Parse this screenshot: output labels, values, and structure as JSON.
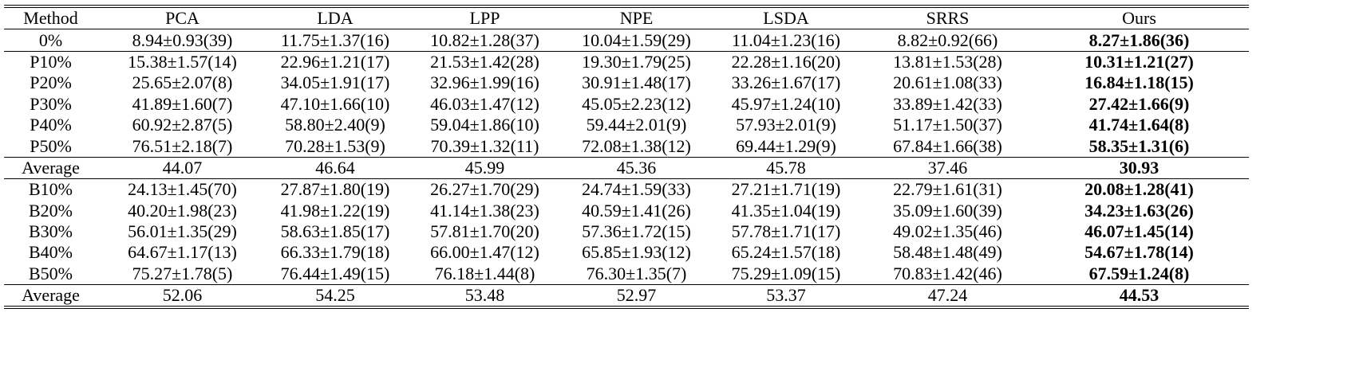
{
  "table": {
    "header": [
      "Method",
      "PCA",
      "LDA",
      "LPP",
      "NPE",
      "LSDA",
      "SRRS",
      "Ours"
    ],
    "rows": [
      [
        "0%",
        "8.94±0.93(39)",
        "11.75±1.37(16)",
        "10.82±1.28(37)",
        "10.04±1.59(29)",
        "11.04±1.23(16)",
        "8.82±0.92(66)",
        "8.27±1.86(36)"
      ],
      [
        "P10%",
        "15.38±1.57(14)",
        "22.96±1.21(17)",
        "21.53±1.42(28)",
        "19.30±1.79(25)",
        "22.28±1.16(20)",
        "13.81±1.53(28)",
        "10.31±1.21(27)"
      ],
      [
        "P20%",
        "25.65±2.07(8)",
        "34.05±1.91(17)",
        "32.96±1.99(16)",
        "30.91±1.48(17)",
        "33.26±1.67(17)",
        "20.61±1.08(33)",
        "16.84±1.18(15)"
      ],
      [
        "P30%",
        "41.89±1.60(7)",
        "47.10±1.66(10)",
        "46.03±1.47(12)",
        "45.05±2.23(12)",
        "45.97±1.24(10)",
        "33.89±1.42(33)",
        "27.42±1.66(9)"
      ],
      [
        "P40%",
        "60.92±2.87(5)",
        "58.80±2.40(9)",
        "59.04±1.86(10)",
        "59.44±2.01(9)",
        "57.93±2.01(9)",
        "51.17±1.50(37)",
        "41.74±1.64(8)"
      ],
      [
        "P50%",
        "76.51±2.18(7)",
        "70.28±1.53(9)",
        "70.39±1.32(11)",
        "72.08±1.38(12)",
        "69.44±1.29(9)",
        "67.84±1.66(38)",
        "58.35±1.31(6)"
      ],
      [
        "Average",
        "44.07",
        "46.64",
        "45.99",
        "45.36",
        "45.78",
        "37.46",
        "30.93"
      ],
      [
        "B10%",
        "24.13±1.45(70)",
        "27.87±1.80(19)",
        "26.27±1.70(29)",
        "24.74±1.59(33)",
        "27.21±1.71(19)",
        "22.79±1.61(31)",
        "20.08±1.28(41)"
      ],
      [
        "B20%",
        "40.20±1.98(23)",
        "41.98±1.22(19)",
        "41.14±1.38(23)",
        "40.59±1.41(26)",
        "41.35±1.04(19)",
        "35.09±1.60(39)",
        "34.23±1.63(26)"
      ],
      [
        "B30%",
        "56.01±1.35(29)",
        "58.63±1.85(17)",
        "57.81±1.70(20)",
        "57.36±1.72(15)",
        "57.78±1.71(17)",
        "49.02±1.35(46)",
        "46.07±1.45(14)"
      ],
      [
        "B40%",
        "64.67±1.17(13)",
        "66.33±1.79(18)",
        "66.00±1.47(12)",
        "65.85±1.93(12)",
        "65.24±1.57(18)",
        "58.48±1.48(49)",
        "54.67±1.78(14)"
      ],
      [
        "B50%",
        "75.27±1.78(5)",
        "76.44±1.49(15)",
        "76.18±1.44(8)",
        "76.30±1.35(7)",
        "75.29±1.09(15)",
        "70.83±1.42(46)",
        "67.59±1.24(8)"
      ],
      [
        "Average",
        "52.06",
        "54.25",
        "53.48",
        "52.97",
        "53.37",
        "47.24",
        "44.53"
      ]
    ]
  }
}
